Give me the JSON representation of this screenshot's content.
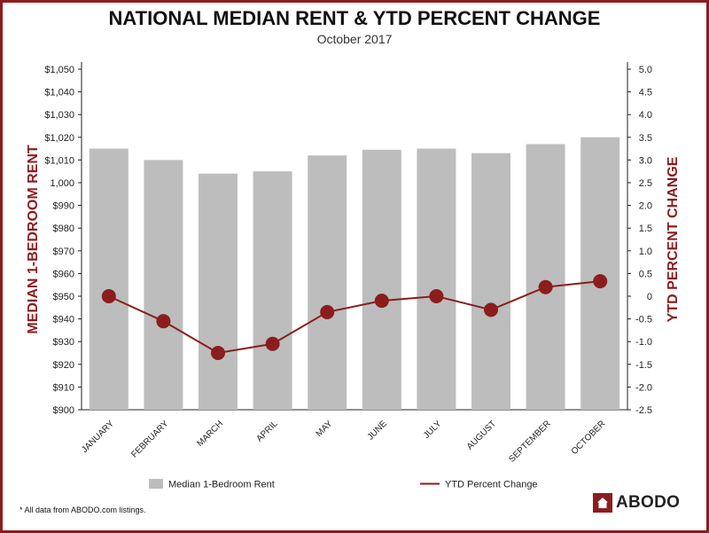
{
  "chart_data": {
    "type": "bar+line",
    "title": "NATIONAL MEDIAN RENT & YTD PERCENT CHANGE",
    "subtitle": "October 2017",
    "categories": [
      "JANUARY",
      "FEBRUARY",
      "MARCH",
      "APRIL",
      "MAY",
      "JUNE",
      "JULY",
      "AUGUST",
      "SEPTEMBER",
      "OCTOBER"
    ],
    "series": [
      {
        "name": "Median 1-Bedroom Rent",
        "kind": "bar",
        "axis": "left",
        "values": [
          1015,
          1010,
          1004,
          1005,
          1012,
          1014.5,
          1015,
          1013,
          1017,
          1020
        ]
      },
      {
        "name": "YTD Percent Change",
        "kind": "line",
        "axis": "right",
        "values": [
          0.0,
          -0.55,
          -1.25,
          -1.05,
          -0.35,
          -0.1,
          0.0,
          -0.3,
          0.2,
          0.33
        ]
      }
    ],
    "ylabel_left": "MEDIAN 1-BEDROOM RENT",
    "ylabel_right": "YTD PERCENT CHANGE",
    "ylim_left": [
      900,
      1050
    ],
    "ylim_right": [
      -2.5,
      5.0
    ],
    "yticks_left": [
      "$900",
      "$910",
      "$920",
      "$930",
      "$940",
      "$950",
      "$960",
      "$970",
      "$980",
      "$990",
      "1,000",
      "$1,010",
      "$1,020",
      "$1,030",
      "$1,040",
      "$1,050"
    ],
    "yticks_right": [
      "-2.5",
      "-2.0",
      "-1.5",
      "-1.0",
      "-0.5",
      "0",
      "0.5",
      "1.0",
      "1.5",
      "2.0",
      "2.5",
      "3.0",
      "3.5",
      "4.0",
      "4.5",
      "5.0"
    ],
    "colors": {
      "bar": "#bdbdbd",
      "line": "#8b1d1d",
      "axis_label": "#8b1d1d"
    }
  },
  "footnote": "* All data from ABODO.com listings.",
  "logo": {
    "text": "ABODO",
    "icon": "house-icon"
  }
}
